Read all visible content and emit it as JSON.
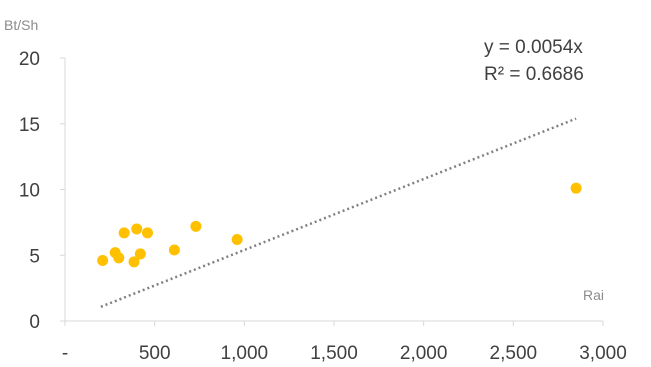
{
  "chart_data": {
    "type": "scatter",
    "title": "",
    "xlabel": "Rai",
    "ylabel": "Bt/Sh",
    "xlim": [
      0,
      3000
    ],
    "ylim": [
      0,
      20
    ],
    "x_ticks": [
      0,
      500,
      1000,
      1500,
      2000,
      2500,
      3000
    ],
    "x_tick_labels": [
      "-",
      "500",
      "1,000",
      "1,500",
      "2,000",
      "2,500",
      "3,000"
    ],
    "y_ticks": [
      0,
      5,
      10,
      15,
      20
    ],
    "y_tick_labels": [
      "0",
      "5",
      "10",
      "15",
      "20"
    ],
    "grid": false,
    "legend": "none",
    "series": [
      {
        "color": "#FFC000",
        "points": [
          {
            "x": 210,
            "y": 4.6
          },
          {
            "x": 280,
            "y": 5.2
          },
          {
            "x": 300,
            "y": 4.8
          },
          {
            "x": 330,
            "y": 6.7
          },
          {
            "x": 385,
            "y": 4.5
          },
          {
            "x": 400,
            "y": 7.0
          },
          {
            "x": 420,
            "y": 5.1
          },
          {
            "x": 460,
            "y": 6.7
          },
          {
            "x": 610,
            "y": 5.4
          },
          {
            "x": 730,
            "y": 7.2
          },
          {
            "x": 960,
            "y": 6.2
          },
          {
            "x": 2850,
            "y": 10.1
          }
        ]
      }
    ],
    "trendline": {
      "type": "linear",
      "slope": 0.0054,
      "x_range": [
        200,
        2850
      ],
      "color": "#808080",
      "style": "dotted",
      "equation": "y = 0.0054x",
      "r_squared": "R² = 0.6686"
    }
  }
}
